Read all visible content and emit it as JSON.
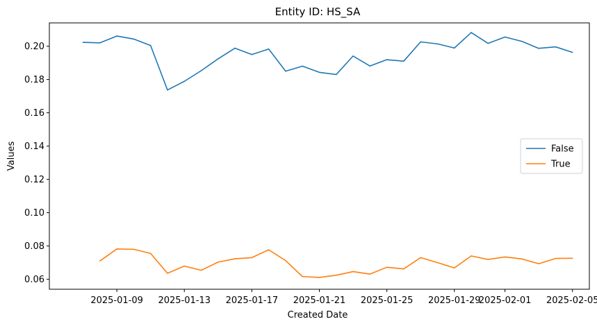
{
  "chart_data": {
    "type": "line",
    "title": "Entity ID: HS_SA",
    "xlabel": "Created Date",
    "ylabel": "Values",
    "x_start": "2025-01-07",
    "x_end": "2025-02-05",
    "xlim": [
      "2025-01-05",
      "2025-02-06"
    ],
    "ylim": [
      0.054,
      0.214
    ],
    "x_ticks": [
      "2025-01-09",
      "2025-01-13",
      "2025-01-17",
      "2025-01-21",
      "2025-01-25",
      "2025-01-29",
      "2025-02-01",
      "2025-02-05"
    ],
    "y_ticks": [
      "0.06",
      "0.08",
      "0.10",
      "0.12",
      "0.14",
      "0.16",
      "0.18",
      "0.20"
    ],
    "legend_position": "center-right",
    "grid": false,
    "series": [
      {
        "name": "False",
        "color": "#1f77b4",
        "dates": [
          "2025-01-07",
          "2025-01-08",
          "2025-01-09",
          "2025-01-10",
          "2025-01-11",
          "2025-01-12",
          "2025-01-13",
          "2025-01-14",
          "2025-01-15",
          "2025-01-16",
          "2025-01-17",
          "2025-01-18",
          "2025-01-19",
          "2025-01-20",
          "2025-01-21",
          "2025-01-22",
          "2025-01-23",
          "2025-01-24",
          "2025-01-25",
          "2025-01-26",
          "2025-01-27",
          "2025-01-28",
          "2025-01-29",
          "2025-01-30",
          "2025-01-31",
          "2025-02-01",
          "2025-02-02",
          "2025-02-03",
          "2025-02-04",
          "2025-02-05"
        ],
        "values": [
          0.2023,
          0.202,
          0.2061,
          0.2043,
          0.2004,
          0.1737,
          0.1789,
          0.1853,
          0.1924,
          0.1988,
          0.195,
          0.1983,
          0.185,
          0.188,
          0.1843,
          0.183,
          0.1941,
          0.1881,
          0.1919,
          0.191,
          0.2026,
          0.2014,
          0.1989,
          0.2082,
          0.2017,
          0.2055,
          0.2029,
          0.1987,
          0.1996,
          0.1963
        ]
      },
      {
        "name": "True",
        "color": "#ff7f0e",
        "dates": [
          "2025-01-08",
          "2025-01-09",
          "2025-01-10",
          "2025-01-11",
          "2025-01-12",
          "2025-01-13",
          "2025-01-14",
          "2025-01-15",
          "2025-01-16",
          "2025-01-17",
          "2025-01-18",
          "2025-01-19",
          "2025-01-20",
          "2025-01-21",
          "2025-01-22",
          "2025-01-23",
          "2025-01-24",
          "2025-01-25",
          "2025-01-26",
          "2025-01-27",
          "2025-01-28",
          "2025-01-29",
          "2025-01-30",
          "2025-01-31",
          "2025-02-01",
          "2025-02-02",
          "2025-02-03",
          "2025-02-04",
          "2025-02-05"
        ],
        "values": [
          0.071,
          0.0782,
          0.078,
          0.0755,
          0.0636,
          0.0679,
          0.0654,
          0.0703,
          0.0723,
          0.073,
          0.0777,
          0.0712,
          0.0616,
          0.0611,
          0.0624,
          0.0646,
          0.0631,
          0.0672,
          0.0662,
          0.073,
          0.07,
          0.0668,
          0.074,
          0.0719,
          0.0734,
          0.0722,
          0.0693,
          0.0725,
          0.0726
        ]
      }
    ]
  }
}
